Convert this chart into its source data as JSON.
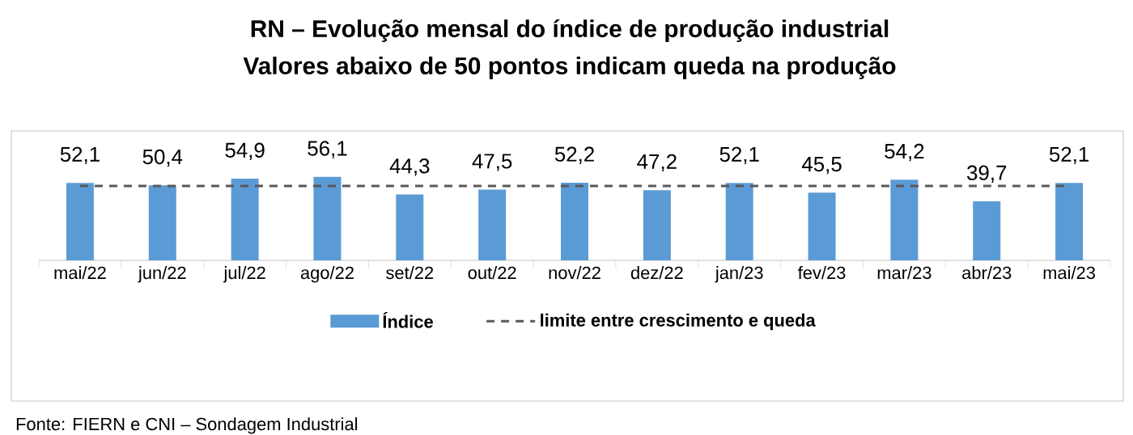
{
  "chart_data": {
    "type": "bar",
    "title": "RN – Evolução mensal do índice de produção industrial",
    "subtitle": "Valores abaixo de 50 pontos indicam queda na produção",
    "categories": [
      "mai/22",
      "jun/22",
      "jul/22",
      "ago/22",
      "set/22",
      "out/22",
      "nov/22",
      "dez/22",
      "jan/23",
      "fev/23",
      "mar/23",
      "abr/23",
      "mai/23"
    ],
    "series": [
      {
        "name": "Índice",
        "color": "#5b9bd5",
        "values": [
          52.1,
          50.4,
          54.9,
          56.1,
          44.3,
          47.5,
          52.2,
          47.2,
          52.1,
          45.5,
          54.2,
          39.7,
          52.1
        ],
        "value_labels": [
          "52,1",
          "50,4",
          "54,9",
          "56,1",
          "44,3",
          "47,5",
          "52,2",
          "47,2",
          "52,1",
          "45,5",
          "54,2",
          "39,7",
          "52,1"
        ]
      }
    ],
    "ref_lines": [
      {
        "axis": "y",
        "value": 50,
        "label": "limite entre crescimento e queda",
        "color": "#595959",
        "line_style": "dashed"
      }
    ],
    "legend": "bottom",
    "grid": false,
    "annotations": [
      "Fonte: FIERN e CNI – Sondagem Industrial"
    ]
  }
}
